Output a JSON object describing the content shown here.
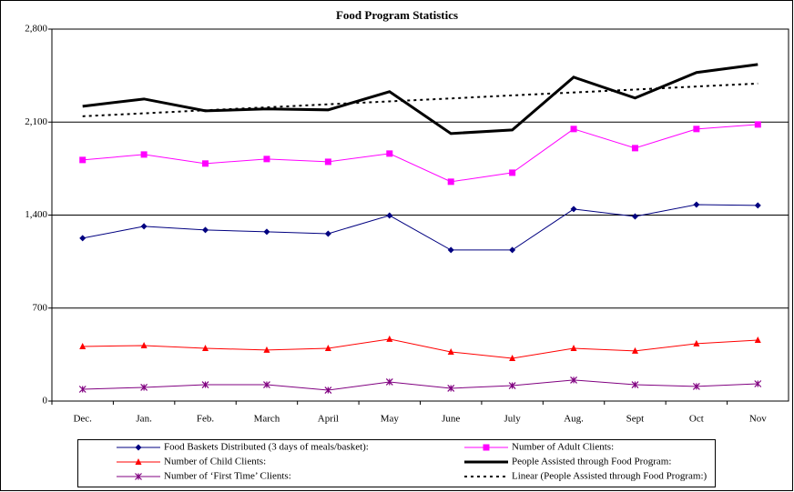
{
  "chart_data": {
    "type": "line",
    "title": "Food Program Statistics",
    "categories": [
      "Dec.",
      "Jan.",
      "Feb.",
      "March",
      "April",
      "May",
      "June",
      "July",
      "Aug.",
      "Sept",
      "Oct",
      "Nov"
    ],
    "ylim": [
      0,
      2800
    ],
    "yticks": [
      0,
      700,
      {
        "value": 1400,
        "label": "1,400"
      },
      {
        "value": 2100,
        "label": "2,100"
      },
      {
        "value": 2800,
        "label": "2,800"
      }
    ],
    "grid": true,
    "legend": "bottom",
    "series": [
      {
        "name": "Food Baskets Distributed (3 days of meals/basket):",
        "color": "#000080",
        "marker": "diamond",
        "line_style": "solid",
        "line_width": 1,
        "values": [
          1226,
          1315,
          1288,
          1274,
          1260,
          1397,
          1137,
          1137,
          1445,
          1390,
          1479,
          1473
        ]
      },
      {
        "name": "Number of Adult Clients:",
        "color": "#ff00ff",
        "marker": "square",
        "line_style": "solid",
        "line_width": 1,
        "values": [
          1815,
          1856,
          1788,
          1822,
          1801,
          1863,
          1651,
          1719,
          2048,
          1904,
          2048,
          2082
        ]
      },
      {
        "name": "Number of Child Clients:",
        "color": "#ff0000",
        "marker": "triangle",
        "line_style": "solid",
        "line_width": 1,
        "values": [
          411,
          418,
          397,
          384,
          397,
          466,
          370,
          322,
          397,
          377,
          432,
          459
        ]
      },
      {
        "name": "People Assisted through Food Program:",
        "color": "#000000",
        "marker": "none",
        "line_style": "solid",
        "line_width": 3,
        "values": [
          2219,
          2274,
          2185,
          2199,
          2192,
          2329,
          2014,
          2041,
          2438,
          2281,
          2473,
          2534
        ]
      },
      {
        "name": "Number of ‘First Time’ Clients:",
        "color": "#800080",
        "marker": "asterisk",
        "line_style": "solid",
        "line_width": 1,
        "values": [
          89,
          103,
          123,
          123,
          82,
          144,
          96,
          116,
          158,
          123,
          110,
          130
        ]
      },
      {
        "name": "Linear (People Assisted through Food Program:)",
        "color": "#000000",
        "marker": "none",
        "line_style": "dashed",
        "line_width": 2,
        "values": [
          2144,
          2166,
          2189,
          2211,
          2234,
          2256,
          2278,
          2301,
          2323,
          2345,
          2368,
          2390
        ]
      }
    ]
  }
}
